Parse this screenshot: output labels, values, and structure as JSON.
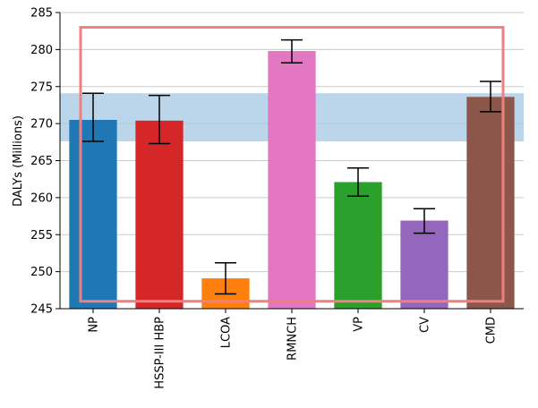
{
  "chart_data": {
    "type": "bar",
    "title": "",
    "xlabel": "",
    "ylabel": "DALYs (Millions)",
    "ylim": [
      245,
      285
    ],
    "yticks": [
      245,
      250,
      255,
      260,
      265,
      270,
      275,
      280,
      285
    ],
    "grid": true,
    "categories": [
      "NP",
      "HSSP-III HBP",
      "LCOA",
      "RMNCH",
      "VP",
      "CV",
      "CMD"
    ],
    "values": [
      270.5,
      270.4,
      249.1,
      279.8,
      262.1,
      256.9,
      273.6
    ],
    "error_low": [
      267.6,
      267.3,
      247.0,
      278.2,
      260.2,
      255.2,
      271.6
    ],
    "error_high": [
      274.1,
      273.8,
      251.2,
      281.3,
      264.0,
      258.5,
      275.7
    ],
    "colors": [
      "#1f77b4",
      "#d62728",
      "#ff7f0e",
      "#e377c2",
      "#2ca02c",
      "#9467bd",
      "#8c564b"
    ],
    "shaded_band": {
      "ymin": 267.6,
      "ymax": 274.1,
      "color": "#9ec5e3"
    },
    "highlight_box": {
      "ymin": 246.0,
      "ymax": 283.0,
      "color": "#f08080"
    }
  }
}
